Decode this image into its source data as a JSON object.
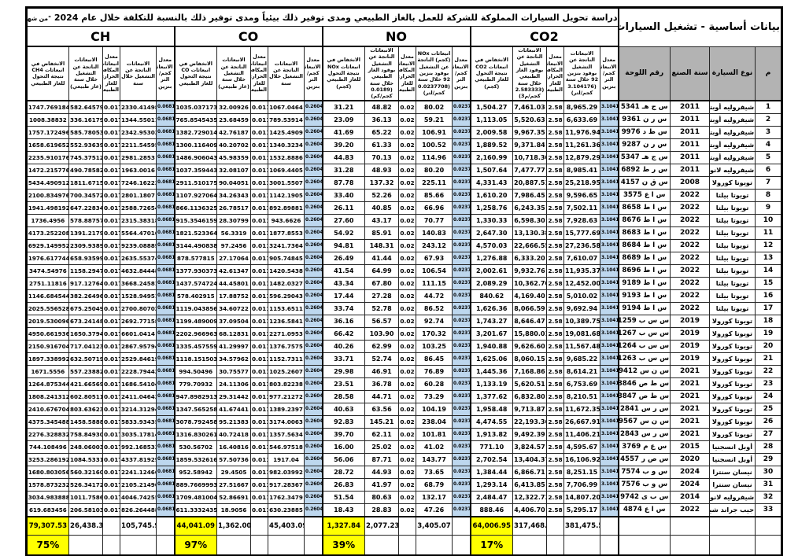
{
  "title": {
    "text": "دراسة تحويل السيارات المملوكة للشركة للعمل بالغاز الطبيعي ومدى توفير ذلك بيئياً ومدى توفير ذلك بالنسبة للتكلفة خلال عام 2024",
    "note": "\"من شهر أكتوبر 2023 وحتى شهر أكتوبر 2024\""
  },
  "basic": {
    "header": "بيانات أساسية - تشغيل السيارات المملوكة",
    "columns": [
      "م",
      "نوع السيارة",
      "سنة الصنع",
      "رقم اللوحة"
    ]
  },
  "groups": [
    {
      "key": "co2",
      "label": "CO2",
      "rate_gasoline": "3.104176",
      "rate_gas": "2.58",
      "headers": [
        "معدل الانبعاثات كجم/التر بنزين",
        "الانبعاثات الناتجة عن التشغيل بوقود بنزين 92 خلال سنة (3.104176 كجم/لتر)",
        "معدل الانبعاثات المكافئ الحراري للغاز الطبيعي",
        "الانبعاثات الناتجة عن التشغيل بوقود الغاز الطبيعي خلال سنة (2.583333 كجم/م3)",
        "الانخفاض في انبعاثات CO2 نتيجة التحول للغاز الطبيعي (كجم)"
      ]
    },
    {
      "key": "nox",
      "label": "NO",
      "rate_gasoline": "0.0237708",
      "rate_gas": "0.02",
      "headers": [
        "معدل الانبعاثات كجم/التر بنزين",
        "انبعاثات NOx (كجم) الناتجة عن التشغيل بوقود بنزين 92 خلال سنة (0.0237708 كجم/لتر)",
        "معدل الانبعاثات المكافئ الحراري للغاز الطبيعي",
        "الانبعاثات الناتجة عن التشغيل بوقود الغاز الطبيعي خلال سنة (0.0189 كجم/كم)",
        "الانخفاض في انبعاثات NOx نتيجة التحول للغاز الطبيعي (كجم)"
      ]
    },
    {
      "key": "co",
      "label": "CO",
      "rate_gasoline": "0.260428",
      "rate_gas": "0.0111",
      "headers": [
        "معدل الانبعاثات كجم/التر بنزين",
        "الانبعاثات الناتجة عن التشغيل خلال سنة",
        "معدل انبعاثات المكافئ الحراري للغاز الطبيعي",
        "الانبعاثات الناتجة عن التشغيل خلال سنة (غاز طبيعي)",
        "الانخفاض في انبعاثات CO نتيجة التحول للغاز الطبيعي"
      ]
    },
    {
      "key": "ch",
      "label": "CH",
      "rate_gasoline": "0.068171",
      "rate_gas": "0.0173",
      "headers": [
        "معدل الانبعاثات كجم/التر بنزين",
        "الانبعاثات الناتجة عن التشغيل خلال سنة",
        "معدل انبعاثات المكافئ الحراري للغاز الطبيعي",
        "الانبعاثات الناتجة عن التشغيل خلال سنة (غاز طبيعي)",
        "الانخفاض في انبعاثات CH4 نتيجة التحول للغاز الطبيعي"
      ]
    }
  ],
  "rows": [
    {
      "idx": "1",
      "type": "شيفروليه أوبترا",
      "year": "2011",
      "plate": "س ج هـ 5341",
      "co2": [
        "8,965.29",
        "7,461.03",
        "1,504.27"
      ],
      "nox": [
        "80.02",
        "48.82",
        "31.21"
      ],
      "co": [
        "1067.0464",
        "32.00926",
        "1035.037173"
      ],
      "ch": [
        "2330.41498",
        "582.645798",
        "1747.769184"
      ]
    },
    {
      "idx": "2",
      "type": "شيفروليه أوبترا",
      "year": "2011",
      "plate": "س ر ن 9361",
      "co2": [
        "6,633.69",
        "5,520.63",
        "1,113.05"
      ],
      "nox": [
        "59.21",
        "36.13",
        "23.09"
      ],
      "co": [
        "789.53914",
        "23.68459",
        "765.8545435"
      ],
      "ch": [
        "1344.55011",
        "336.16179",
        "1008.38832"
      ]
    },
    {
      "idx": "3",
      "type": "شيفروليه أوبترا",
      "year": "2011",
      "plate": "س ط د 9976",
      "co2": [
        "11,976.94",
        "9,967.35",
        "2,009.58"
      ],
      "nox": [
        "106.91",
        "65.22",
        "41.69"
      ],
      "co": [
        "1425.4909",
        "42.76187",
        "1382.729014"
      ],
      "ch": [
        "2342.95303",
        "585.780537",
        "1757.172496"
      ]
    },
    {
      "idx": "4",
      "type": "شيفروليه أوبترا",
      "year": "2011",
      "plate": "س ر ن 9287",
      "co2": [
        "11,261.36",
        "9,371.84",
        "1,889.52"
      ],
      "nox": [
        "100.52",
        "61.33",
        "39.20"
      ],
      "co": [
        "1340.3234",
        "40.20702",
        "1300.116409"
      ],
      "ch": [
        "2211.54595",
        "552.936394",
        "1658.619652"
      ]
    },
    {
      "idx": "5",
      "type": "شيفروليه أوبترا",
      "year": "2011",
      "plate": "س ج هـ 5347",
      "co2": [
        "12,879.29",
        "10,718.30",
        "2,160.99"
      ],
      "nox": [
        "114.96",
        "70.13",
        "44.83"
      ],
      "co": [
        "1532.8886",
        "45.98359",
        "1486.906043"
      ],
      "ch": [
        "2981.2853",
        "745.375122",
        "2235.910176"
      ]
    },
    {
      "idx": "6",
      "type": "شيفروليه لانوس",
      "year": "2011",
      "plate": "س ر ط 6892",
      "co2": [
        "8,985.41",
        "7,477.77",
        "1,507.64"
      ],
      "nox": [
        "80.20",
        "48.93",
        "31.28"
      ],
      "co": [
        "1069.4405",
        "32.08107",
        "1037.359443"
      ],
      "ch": [
        "1963.0016",
        "490.785822",
        "1472.215776"
      ]
    },
    {
      "idx": "7",
      "type": "تويوتا كورولا",
      "year": "2008",
      "plate": "س ق ن 4157",
      "co2": [
        "25,218.95",
        "20,887.51",
        "4,331.43"
      ],
      "nox": [
        "225.11",
        "137.32",
        "87.78"
      ],
      "co": [
        "3001.5507",
        "90.04051",
        "2911.510175"
      ],
      "ch": [
        "7246.16223",
        "1811.67151",
        "5434.490912"
      ]
    },
    {
      "idx": "8",
      "type": "تويوتا بيلتا",
      "year": "2022",
      "plate": "س ا ع 3575",
      "co2": [
        "9,596.65",
        "7,986.45",
        "1,610.20"
      ],
      "nox": [
        "85.66",
        "52.26",
        "33.40"
      ],
      "co": [
        "1142.1905",
        "34.26343",
        "1107.927064"
      ],
      "ch": [
        "2801.1807",
        "700.345722",
        "2100.834976"
      ]
    },
    {
      "idx": "9",
      "type": "تويوتا بيلتا",
      "year": "2022",
      "plate": "س ا ط 8658",
      "co2": [
        "7,502.11",
        "6,243.35",
        "1,258.76"
      ],
      "nox": [
        "66.96",
        "40.85",
        "26.11"
      ],
      "co": [
        "892.89881",
        "26.78517",
        "866.1136325"
      ],
      "ch": [
        "2588.72654",
        "647.228349",
        "1941.498192"
      ]
    },
    {
      "idx": "10",
      "type": "تويوتا بيلتا",
      "year": "2022",
      "plate": "س ا ط 8676",
      "co2": [
        "7,928.63",
        "6,598.30",
        "1,330.33"
      ],
      "nox": [
        "70.77",
        "43.17",
        "27.60"
      ],
      "co": [
        "943.6626",
        "28.30799",
        "915.3546159"
      ],
      "ch": [
        "2315.38318",
        "578.887575",
        "1736.4956"
      ]
    },
    {
      "idx": "11",
      "type": "تويوتا بيلتا",
      "year": "2022",
      "plate": "س ا ط 8683",
      "co2": [
        "15,777.69",
        "13,130.38",
        "2,647.30"
      ],
      "nox": [
        "140.83",
        "85.91",
        "54.92"
      ],
      "co": [
        "1877.8553",
        "56.3319",
        "1821.523364"
      ],
      "ch": [
        "5564.47016",
        "1391.21795",
        "4173.252208"
      ]
    },
    {
      "idx": "12",
      "type": "تويوتا بيلتا",
      "year": "2022",
      "plate": "س ا ط 8684",
      "co2": [
        "27,236.58",
        "22,666.55",
        "4,570.03"
      ],
      "nox": [
        "243.12",
        "148.31",
        "94.81"
      ],
      "co": [
        "3241.7364",
        "97.2456",
        "3144.490838"
      ],
      "ch": [
        "9239.08889",
        "2309.93894",
        "6929.149952"
      ]
    },
    {
      "idx": "13",
      "type": "تويوتا بيلتا",
      "year": "2022",
      "plate": "س ا ط 8689",
      "co2": [
        "7,610.07",
        "6,333.20",
        "1,276.88"
      ],
      "nox": [
        "67.93",
        "41.44",
        "26.49"
      ],
      "co": [
        "905.74845",
        "27.17064",
        "878.577815"
      ],
      "ch": [
        "2635.55374",
        "658.935995",
        "1976.617744"
      ]
    },
    {
      "idx": "14",
      "type": "تويوتا بيلتا",
      "year": "2022",
      "plate": "س ا ط 8696",
      "co2": [
        "11,935.37",
        "9,932.76",
        "2,002.61"
      ],
      "nox": [
        "106.54",
        "64.99",
        "41.54"
      ],
      "co": [
        "1420.5438",
        "42.61347",
        "1377.930373"
      ],
      "ch": [
        "4632.84448",
        "1158.29472",
        "3474.54976"
      ]
    },
    {
      "idx": "15",
      "type": "تويوتا بيلتا",
      "year": "2022",
      "plate": "س ا ط 9189",
      "co2": [
        "12,452.00",
        "10,362.70",
        "2,089.29"
      ],
      "nox": [
        "111.15",
        "67.80",
        "43.34"
      ],
      "co": [
        "1482.0327",
        "44.45801",
        "1437.574724"
      ],
      "ch": [
        "3668.24581",
        "917.127645",
        "2751.11816"
      ]
    },
    {
      "idx": "16",
      "type": "تويوتا بيلتا",
      "year": "2022",
      "plate": "س ا ط 9193",
      "co2": [
        "5,010.02",
        "4,169.40",
        "840.62"
      ],
      "nox": [
        "44.72",
        "27.28",
        "17.44"
      ],
      "co": [
        "596.29043",
        "17.88752",
        "578.402915"
      ],
      "ch": [
        "1528.94951",
        "382.264968",
        "1146.684544"
      ]
    },
    {
      "idx": "17",
      "type": "تويوتا بيلتا",
      "year": "2022",
      "plate": "س ا ط 9194",
      "co2": [
        "9,692.94",
        "8,066.59",
        "1,626.36"
      ],
      "nox": [
        "86.52",
        "52.78",
        "33.74"
      ],
      "co": [
        "1153.6511",
        "34.60722",
        "1119.043856"
      ],
      "ch": [
        "2700.80702",
        "675.250491",
        "2025.556528"
      ]
    },
    {
      "idx": "18",
      "type": "تويوتا كورولا",
      "year": "2019",
      "plate": "س س ب 1259",
      "co2": [
        "10,389.75",
        "8,646.47",
        "1,743.27"
      ],
      "nox": [
        "92.74",
        "56.57",
        "36.16"
      ],
      "co": [
        "1236.5841",
        "37.09504",
        "1199.489009"
      ],
      "ch": [
        "2692.77158",
        "673.241487",
        "2019.530096"
      ]
    },
    {
      "idx": "19",
      "type": "تويوتا كورولا",
      "year": "2019",
      "plate": "س س ب 1267",
      "co2": [
        "19,081.68",
        "15,880.01",
        "3,201.67"
      ],
      "nox": [
        "170.32",
        "103.90",
        "66.42"
      ],
      "co": [
        "2271.0953",
        "68.12831",
        "2202.966963"
      ],
      "ch": [
        "6601.0414",
        "1650.37947",
        "4950.661936"
      ]
    },
    {
      "idx": "20",
      "type": "تويوتا كورولا",
      "year": "2019",
      "plate": "س س ب 1264",
      "co2": [
        "11,567.48",
        "9,626.60",
        "1,940.88"
      ],
      "nox": [
        "103.25",
        "62.99",
        "40.26"
      ],
      "co": [
        "1376.7575",
        "41.29997",
        "1335.457559"
      ],
      "ch": [
        "2867.95794",
        "717.041238",
        "2150.916704"
      ]
    },
    {
      "idx": "21",
      "type": "تويوتا كورولا",
      "year": "2019",
      "plate": "س س ب 1263",
      "co2": [
        "9,685.22",
        "8,060.15",
        "1,625.06"
      ],
      "nox": [
        "86.45",
        "52.74",
        "33.71"
      ],
      "co": [
        "1152.7311",
        "34.57962",
        "1118.151503"
      ],
      "ch": [
        "2529.84619",
        "632.507199",
        "1897.338992"
      ]
    },
    {
      "idx": "22",
      "type": "تويوتا كورولا",
      "year": "2021",
      "plate": "س ن س 9412",
      "co2": [
        "8,614.21",
        "7,168.86",
        "1,445.36"
      ],
      "nox": [
        "76.89",
        "46.91",
        "29.98"
      ],
      "co": [
        "1025.2607",
        "30.75577",
        "994.50496"
      ],
      "ch": [
        "2228.79443",
        "557.238825",
        "1671.5556"
      ]
    },
    {
      "idx": "23",
      "type": "تويوتا كورولا",
      "year": "2021",
      "plate": "س ط ص 8846",
      "co2": [
        "6,753.69",
        "5,620.51",
        "1,133.19"
      ],
      "nox": [
        "60.28",
        "36.78",
        "23.51"
      ],
      "co": [
        "803.82238",
        "24.11306",
        "779.70932"
      ],
      "ch": [
        "1686.54104",
        "421.665693",
        "1264.875344"
      ]
    },
    {
      "idx": "24",
      "type": "تويوتا كورولا",
      "year": "2021",
      "plate": "س ط ص 8847",
      "co2": [
        "8,210.51",
        "6,832.80",
        "1,377.62"
      ],
      "nox": [
        "73.29",
        "44.71",
        "28.58"
      ],
      "co": [
        "977.21272",
        "29.31442",
        "947.8982913"
      ],
      "ch": [
        "2411.04643",
        "602.805114",
        "1808.241312"
      ]
    },
    {
      "idx": "25",
      "type": "تويوتا كورولا",
      "year": "2021",
      "plate": "س ر س 2841",
      "co2": [
        "11,672.35",
        "9,713.87",
        "1,958.48"
      ],
      "nox": [
        "104.19",
        "63.56",
        "40.63"
      ],
      "co": [
        "1389.2397",
        "41.67441",
        "1347.565258"
      ],
      "ch": [
        "3214.31294",
        "803.636238",
        "2410.676704"
      ]
    },
    {
      "idx": "26",
      "type": "تويوتا كورولا",
      "year": "2021",
      "plate": "س ن س 9567",
      "co2": [
        "26,667.91",
        "22,193.36",
        "4,474.55"
      ],
      "nox": [
        "238.04",
        "145.21",
        "92.83"
      ],
      "co": [
        "3174.0063",
        "95.21383",
        "3078.792458"
      ],
      "ch": [
        "5833.93435",
        "1458.58886",
        "4375.345488"
      ]
    },
    {
      "idx": "27",
      "type": "تويوتا كورولا",
      "year": "2021",
      "plate": "س ر س 2843",
      "co2": [
        "11,406.21",
        "9,492.39",
        "1,913.82"
      ],
      "nox": [
        "101.81",
        "62.11",
        "39.70"
      ],
      "co": [
        "1357.5634",
        "40.72418",
        "1316.830261"
      ],
      "ch": [
        "3035.17814",
        "758.849304",
        "2276.328832"
      ]
    },
    {
      "idx": "28",
      "type": "أوبل انسجنيا",
      "year": "2015",
      "plate": "س ع م 3769",
      "co2": [
        "4,595.67",
        "3,824.57",
        "771.10"
      ],
      "nox": [
        "41.02",
        "25.02",
        "16.00"
      ],
      "co": [
        "546.97518",
        "16.40816",
        "530.56702"
      ],
      "ch": [
        "992.168533",
        "248.060037",
        "744.108496"
      ]
    },
    {
      "idx": "29",
      "type": "أوبل انسجنيا",
      "year": "2020",
      "plate": "س ص ر 4557",
      "co2": [
        "16,106.92",
        "13,404.37",
        "2,702.54"
      ],
      "nox": [
        "143.77",
        "87.71",
        "56.06"
      ],
      "co": [
        "1917.04",
        "57.50736",
        "1859.532616"
      ],
      "ch": [
        "4337.81929",
        "1084.5331",
        "3253.286192"
      ]
    },
    {
      "idx": "30",
      "type": "نيسان سنترا",
      "year": "2024",
      "plate": "س و ب 7574",
      "co2": [
        "8,251.15",
        "6,866.71",
        "1,384.44"
      ],
      "nox": [
        "73.65",
        "44.93",
        "28.72"
      ],
      "co": [
        "982.03992",
        "29.4505",
        "952.58942"
      ],
      "ch": [
        "2241.12466",
        "560.321607",
        "1680.803056"
      ]
    },
    {
      "idx": "31",
      "type": "نيسان سنترا",
      "year": "2024",
      "plate": "س و ب 7576",
      "co2": [
        "7,706.99",
        "6,413.85",
        "1,293.14"
      ],
      "nox": [
        "68.79",
        "41.97",
        "26.83"
      ],
      "co": [
        "917.28367",
        "27.51667",
        "889.7669993"
      ],
      "ch": [
        "2105.21496",
        "526.341729",
        "1578.873232"
      ]
    },
    {
      "idx": "32",
      "type": "شيفروليه لانوس",
      "year": "2014",
      "plate": "س ب ى 9742",
      "co2": [
        "14,807.20",
        "12,322.73",
        "2,484.47"
      ],
      "nox": [
        "132.17",
        "80.63",
        "51.54"
      ],
      "co": [
        "1762.3479",
        "52.86691",
        "1709.481004"
      ],
      "ch": [
        "4046.74255",
        "1011.75866",
        "3034.983888"
      ]
    },
    {
      "idx": "33",
      "type": "جيب جراند شيروكي",
      "year": "2022",
      "plate": "س ا ع 4874",
      "co2": [
        "5,295.17",
        "4,406.70",
        "888.46"
      ],
      "nox": [
        "47.26",
        "28.83",
        "18.43"
      ],
      "co": [
        "630.23885",
        "18.9056",
        "611.3332435"
      ],
      "ch": [
        "826.264488",
        "206.581032",
        "619.683456"
      ]
    }
  ],
  "totals": {
    "co2": {
      "gasoline": "381,475.50",
      "gas": "317,468.55",
      "reduction": "64,006.95",
      "pct": "17%"
    },
    "nox": {
      "gasoline": "3,405.07",
      "gas": "2,077.23",
      "reduction": "1,327.84",
      "pct": "39%"
    },
    "co": {
      "gasoline": "45,403.09",
      "gas": "1,362.00",
      "reduction": "44,041.09",
      "pct": "97%"
    },
    "ch": {
      "gasoline": "105,745.92",
      "gas": "26,438.39",
      "reduction": "79,307.53",
      "pct": "75%"
    }
  },
  "colors": {
    "rate_column": "#bdd7ee",
    "highlight": "#ffff00",
    "basic_header_bg": "#b3b3b3"
  }
}
